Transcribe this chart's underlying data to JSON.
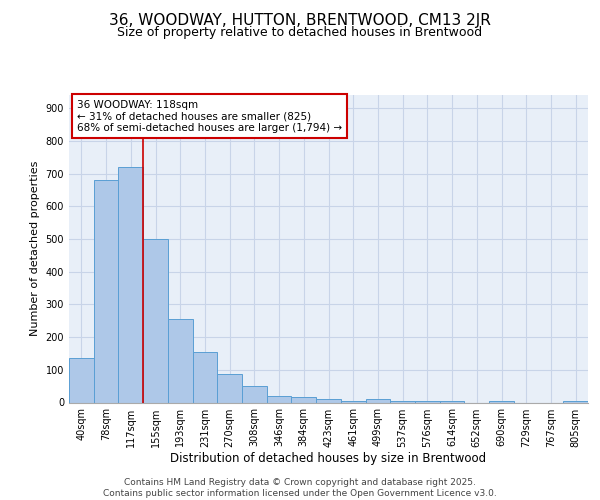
{
  "title1": "36, WOODWAY, HUTTON, BRENTWOOD, CM13 2JR",
  "title2": "Size of property relative to detached houses in Brentwood",
  "xlabel": "Distribution of detached houses by size in Brentwood",
  "ylabel": "Number of detached properties",
  "bar_labels": [
    "40sqm",
    "78sqm",
    "117sqm",
    "155sqm",
    "193sqm",
    "231sqm",
    "270sqm",
    "308sqm",
    "346sqm",
    "384sqm",
    "423sqm",
    "461sqm",
    "499sqm",
    "537sqm",
    "576sqm",
    "614sqm",
    "652sqm",
    "690sqm",
    "729sqm",
    "767sqm",
    "805sqm"
  ],
  "bar_values": [
    135,
    680,
    720,
    500,
    255,
    155,
    88,
    50,
    20,
    18,
    10,
    5,
    10,
    6,
    6,
    5,
    0,
    4,
    0,
    0,
    5
  ],
  "bar_color": "#aec8e8",
  "bar_edge_color": "#5a9fd4",
  "annotation_line1": "36 WOODWAY: 118sqm",
  "annotation_line2": "← 31% of detached houses are smaller (825)",
  "annotation_line3": "68% of semi-detached houses are larger (1,794) →",
  "annotation_box_color": "#ffffff",
  "annotation_box_edge_color": "#cc0000",
  "vline_x_index": 2,
  "vline_color": "#cc0000",
  "vline_lw": 1.2,
  "ylim": [
    0,
    940
  ],
  "yticks": [
    0,
    100,
    200,
    300,
    400,
    500,
    600,
    700,
    800,
    900
  ],
  "grid_color": "#c8d4e8",
  "bg_color": "#e8eff8",
  "footer": "Contains HM Land Registry data © Crown copyright and database right 2025.\nContains public sector information licensed under the Open Government Licence v3.0.",
  "title1_fontsize": 11,
  "title2_fontsize": 9,
  "xlabel_fontsize": 8.5,
  "ylabel_fontsize": 8,
  "tick_fontsize": 7,
  "annotation_fontsize": 7.5,
  "footer_fontsize": 6.5
}
